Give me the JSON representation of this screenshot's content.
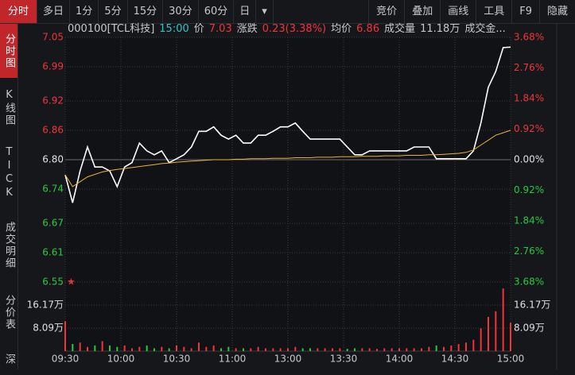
{
  "toolbar": {
    "tabs": [
      "分时",
      "多日",
      "1分",
      "5分",
      "15分",
      "30分",
      "60分",
      "日",
      "▾"
    ],
    "tools": [
      "竞价",
      "叠加",
      "画线",
      "工具",
      "F9",
      "隐藏"
    ]
  },
  "sidebar": [
    "分时图",
    "K线图",
    "TICK",
    "成交明细",
    "分价表",
    "深度"
  ],
  "info": {
    "code": "000100[TCL科技]",
    "time": "15:00",
    "price_label": "价",
    "price": "7.03",
    "change_label": "涨跌",
    "change": "0.23(3.38%)",
    "avg_label": "均价",
    "avg": "6.86",
    "volume_label": "成交量",
    "volume": "11.18万",
    "amount_label": "成交金..."
  },
  "chart_data": {
    "type": "line",
    "x": [
      0,
      4,
      8,
      12,
      16,
      20,
      24,
      28,
      32,
      36,
      40,
      44,
      48,
      52,
      56,
      60,
      64,
      68,
      72,
      76,
      80,
      84,
      88,
      92,
      96,
      100,
      104,
      108,
      112,
      116,
      120,
      124,
      128,
      132,
      136,
      140,
      144,
      148,
      152,
      156,
      160,
      164,
      168,
      172,
      176,
      180,
      184,
      188,
      192,
      196,
      200,
      204,
      208,
      212,
      216,
      220,
      224,
      228,
      232,
      236,
      240
    ],
    "xlim": [
      0,
      240
    ],
    "xticks": [
      {
        "value": 0,
        "label": "09:30"
      },
      {
        "value": 30,
        "label": "10:00"
      },
      {
        "value": 60,
        "label": "10:30"
      },
      {
        "value": 90,
        "label": "11:00"
      },
      {
        "value": 120,
        "label": "13:00"
      },
      {
        "value": 150,
        "label": "13:30"
      },
      {
        "value": 180,
        "label": "14:00"
      },
      {
        "value": 210,
        "label": "14:30"
      },
      {
        "value": 240,
        "label": "15:00"
      }
    ],
    "ylim": [
      6.55,
      7.05
    ],
    "yticks": [
      7.05,
      6.99,
      6.92,
      6.86,
      {
        "value": 6.8,
        "label": "6.80"
      },
      6.74,
      6.67,
      6.61,
      6.55
    ],
    "y2lim": [
      -3.68,
      3.68
    ],
    "y2ticks": [
      {
        "value": 3.68,
        "label": "3.68%"
      },
      {
        "value": 2.76,
        "label": "2.76%"
      },
      {
        "value": 1.84,
        "label": "1.84%"
      },
      {
        "value": 0.92,
        "label": "0.92%"
      },
      {
        "value": 0,
        "label": "0.00%"
      },
      {
        "value": -0.92,
        "label": "0.92%"
      },
      {
        "value": -1.84,
        "label": "1.84%"
      },
      {
        "value": -2.76,
        "label": "2.76%"
      },
      {
        "value": -3.68,
        "label": "3.68%"
      }
    ],
    "grid": true,
    "series": [
      {
        "color": "#ffffff",
        "values": [
          6.769,
          6.712,
          6.777,
          6.826,
          6.785,
          6.785,
          6.777,
          6.745,
          6.785,
          6.794,
          6.834,
          6.818,
          6.81,
          6.818,
          6.794,
          6.802,
          6.81,
          6.826,
          6.858,
          6.858,
          6.867,
          6.85,
          6.842,
          6.85,
          6.834,
          6.834,
          6.85,
          6.85,
          6.858,
          6.867,
          6.867,
          6.875,
          6.858,
          6.842,
          6.842,
          6.842,
          6.842,
          6.842,
          6.826,
          6.81,
          6.81,
          6.818,
          6.818,
          6.818,
          6.818,
          6.818,
          6.818,
          6.826,
          6.826,
          6.826,
          6.802,
          6.802,
          6.802,
          6.802,
          6.802,
          6.818,
          6.875,
          6.948,
          6.98,
          7.029,
          7.03
        ]
      },
      {
        "color": "#e8b33a",
        "values": [
          6.769,
          6.745,
          6.755,
          6.765,
          6.77,
          6.775,
          6.778,
          6.78,
          6.782,
          6.784,
          6.786,
          6.788,
          6.79,
          6.792,
          6.793,
          6.795,
          6.796,
          6.797,
          6.798,
          6.799,
          6.8,
          6.8,
          6.8,
          6.801,
          6.801,
          6.802,
          6.802,
          6.802,
          6.803,
          6.803,
          6.803,
          6.804,
          6.804,
          6.804,
          6.805,
          6.805,
          6.805,
          6.806,
          6.806,
          6.806,
          6.807,
          6.807,
          6.807,
          6.808,
          6.808,
          6.808,
          6.809,
          6.809,
          6.809,
          6.81,
          6.81,
          6.811,
          6.812,
          6.813,
          6.815,
          6.82,
          6.83,
          6.84,
          6.85,
          6.855,
          6.86
        ]
      }
    ],
    "volume": {
      "ylim": [
        0,
        23.4
      ],
      "yticks": [
        {
          "value": 16.17,
          "label": "16.17万"
        },
        {
          "value": 8.09,
          "label": "8.09万"
        }
      ],
      "values": [
        10.5,
        2.5,
        3,
        1.5,
        2,
        3.5,
        2,
        1.5,
        2,
        1,
        1.5,
        2,
        1,
        1.5,
        1,
        2,
        1.5,
        1,
        3,
        1.5,
        2,
        1,
        1.5,
        1,
        1,
        1,
        1.5,
        1,
        1,
        1,
        1,
        1.5,
        1,
        1,
        1,
        1,
        1,
        1,
        0.8,
        1,
        1,
        1,
        0.8,
        1,
        1,
        1,
        1,
        1,
        1,
        1.5,
        2,
        1.5,
        2,
        2.5,
        3,
        4,
        8,
        12,
        14,
        22,
        10
      ]
    }
  }
}
